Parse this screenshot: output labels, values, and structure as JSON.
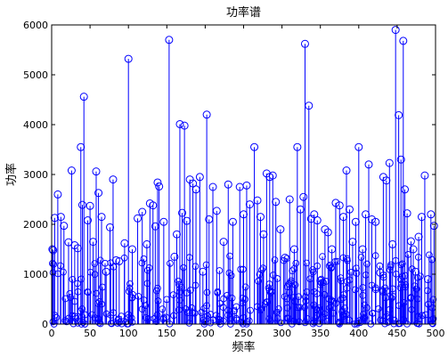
{
  "chart_data": {
    "type": "stem",
    "title": "功率谱",
    "xlabel": "频率",
    "ylabel": "功率",
    "xlim": [
      0,
      500
    ],
    "ylim": [
      0,
      6000
    ],
    "xticks": [
      0,
      50,
      100,
      150,
      200,
      250,
      300,
      350,
      400,
      450,
      500
    ],
    "yticks": [
      0,
      1000,
      2000,
      3000,
      4000,
      5000,
      6000
    ],
    "grid": false,
    "series_color": "#0000ff",
    "points": [
      [
        1,
        1500
      ],
      [
        2,
        1480
      ],
      [
        4,
        2130
      ],
      [
        8,
        2600
      ],
      [
        12,
        2150
      ],
      [
        16,
        1970
      ],
      [
        22,
        1640
      ],
      [
        26,
        3080
      ],
      [
        30,
        1580
      ],
      [
        34,
        1520
      ],
      [
        38,
        3550
      ],
      [
        40,
        2390
      ],
      [
        42,
        4560
      ],
      [
        47,
        2080
      ],
      [
        50,
        2370
      ],
      [
        54,
        1650
      ],
      [
        58,
        3060
      ],
      [
        61,
        2630
      ],
      [
        65,
        2150
      ],
      [
        71,
        1050
      ],
      [
        76,
        1940
      ],
      [
        80,
        2900
      ],
      [
        84,
        1280
      ],
      [
        88,
        1260
      ],
      [
        95,
        1620
      ],
      [
        100,
        5320
      ],
      [
        105,
        1500
      ],
      [
        112,
        2120
      ],
      [
        118,
        2250
      ],
      [
        124,
        1600
      ],
      [
        128,
        2420
      ],
      [
        132,
        2380
      ],
      [
        135,
        1960
      ],
      [
        138,
        2840
      ],
      [
        140,
        2760
      ],
      [
        146,
        2050
      ],
      [
        153,
        5700
      ],
      [
        160,
        1350
      ],
      [
        163,
        1800
      ],
      [
        167,
        4010
      ],
      [
        170,
        2230
      ],
      [
        173,
        3980
      ],
      [
        176,
        2070
      ],
      [
        180,
        2900
      ],
      [
        184,
        2820
      ],
      [
        188,
        2700
      ],
      [
        193,
        2950
      ],
      [
        197,
        1050
      ],
      [
        202,
        4200
      ],
      [
        205,
        2100
      ],
      [
        210,
        2750
      ],
      [
        215,
        2270
      ],
      [
        224,
        1650
      ],
      [
        230,
        2800
      ],
      [
        236,
        2050
      ],
      [
        245,
        2750
      ],
      [
        250,
        2200
      ],
      [
        254,
        2780
      ],
      [
        258,
        2400
      ],
      [
        264,
        3550
      ],
      [
        268,
        2480
      ],
      [
        272,
        2150
      ],
      [
        276,
        1800
      ],
      [
        280,
        3020
      ],
      [
        284,
        2950
      ],
      [
        288,
        2980
      ],
      [
        292,
        2450
      ],
      [
        298,
        1900
      ],
      [
        304,
        1330
      ],
      [
        310,
        2500
      ],
      [
        316,
        1500
      ],
      [
        320,
        3550
      ],
      [
        324,
        2300
      ],
      [
        328,
        2550
      ],
      [
        330,
        5620
      ],
      [
        335,
        4380
      ],
      [
        338,
        2110
      ],
      [
        342,
        2200
      ],
      [
        346,
        2080
      ],
      [
        350,
        870
      ],
      [
        356,
        1900
      ],
      [
        360,
        1840
      ],
      [
        365,
        1500
      ],
      [
        370,
        2430
      ],
      [
        375,
        2380
      ],
      [
        380,
        2150
      ],
      [
        384,
        3080
      ],
      [
        388,
        2300
      ],
      [
        392,
        1650
      ],
      [
        396,
        2050
      ],
      [
        400,
        3550
      ],
      [
        405,
        1500
      ],
      [
        409,
        2200
      ],
      [
        413,
        3200
      ],
      [
        417,
        2100
      ],
      [
        422,
        2050
      ],
      [
        428,
        1030
      ],
      [
        432,
        2950
      ],
      [
        436,
        2880
      ],
      [
        440,
        3230
      ],
      [
        444,
        1600
      ],
      [
        448,
        5900
      ],
      [
        452,
        4190
      ],
      [
        455,
        3300
      ],
      [
        458,
        5680
      ],
      [
        460,
        2700
      ],
      [
        463,
        2220
      ],
      [
        468,
        1660
      ],
      [
        471,
        1500
      ],
      [
        474,
        1050
      ],
      [
        478,
        1750
      ],
      [
        482,
        2150
      ],
      [
        486,
        2980
      ],
      [
        490,
        900
      ],
      [
        494,
        2200
      ],
      [
        498,
        1970
      ]
    ],
    "noise_seed": 7,
    "noise_count": 380,
    "noise_max": 1400
  }
}
